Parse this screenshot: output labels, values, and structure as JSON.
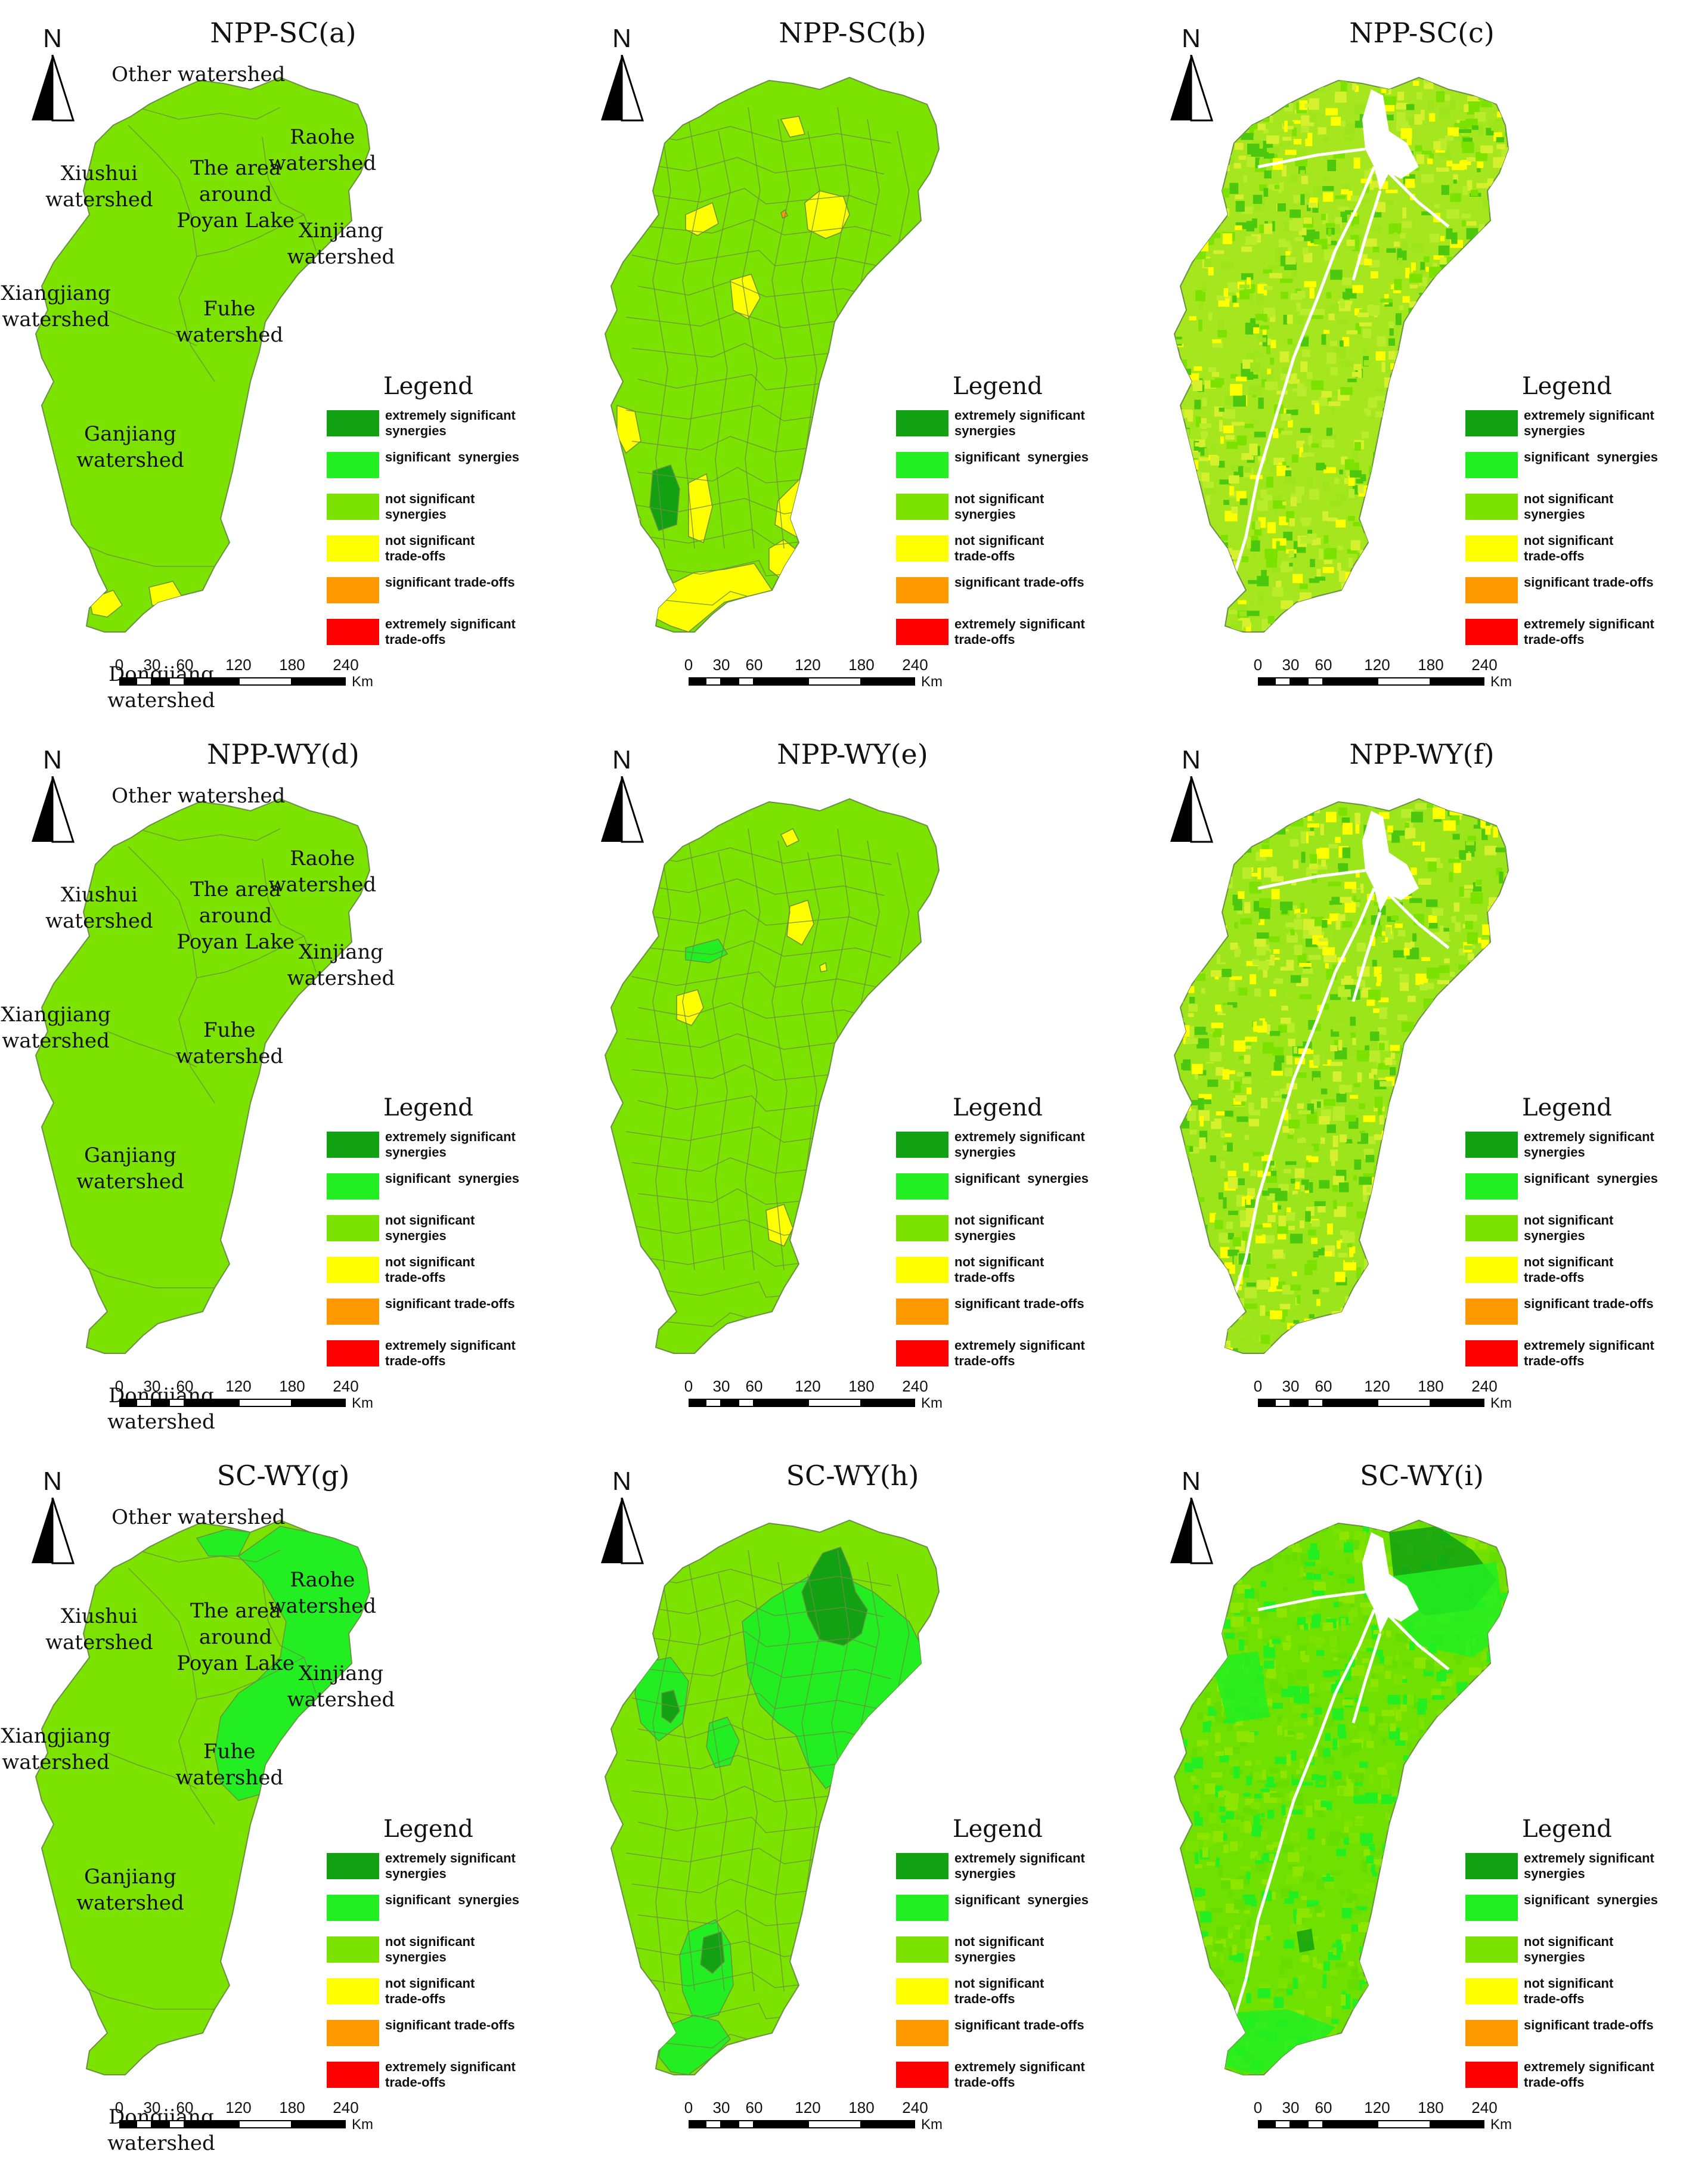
{
  "figure": {
    "panels": [
      {
        "id": "a",
        "title": "NPP-SC(a)",
        "style": "watershed",
        "base": "#7ce300",
        "fine_fill": null,
        "show_labels": true
      },
      {
        "id": "b",
        "title": "NPP-SC(b)",
        "style": "county",
        "base": "#7ce300",
        "fine_fill": null,
        "show_labels": false
      },
      {
        "id": "c",
        "title": "NPP-SC(c)",
        "style": "pixel",
        "base": "#a6e61e",
        "fine_fill": "mixed-yellow-green",
        "show_labels": false
      },
      {
        "id": "d",
        "title": "NPP-WY(d)",
        "style": "watershed",
        "base": "#7ce300",
        "fine_fill": null,
        "show_labels": true
      },
      {
        "id": "e",
        "title": "NPP-WY(e)",
        "style": "county",
        "base": "#7ce300",
        "fine_fill": null,
        "show_labels": false
      },
      {
        "id": "f",
        "title": "NPP-WY(f)",
        "style": "pixel",
        "base": "#9be51a",
        "fine_fill": "mixed-yellow-green",
        "show_labels": false
      },
      {
        "id": "g",
        "title": "SC-WY(g)",
        "style": "watershed",
        "base": "#7ce300",
        "fine_fill": null,
        "show_labels": true
      },
      {
        "id": "h",
        "title": "SC-WY(h)",
        "style": "county",
        "base": "#7ce300",
        "fine_fill": null,
        "show_labels": false
      },
      {
        "id": "i",
        "title": "SC-WY(i)",
        "style": "pixel",
        "base": "#6fe000",
        "fine_fill": "green",
        "show_labels": false
      }
    ],
    "north_letter": "N",
    "north_icon": "north-arrow-icon",
    "watershed_labels": [
      {
        "key": "other",
        "text": "Other watershed"
      },
      {
        "key": "xiushui",
        "text": "Xiushui\nwatershed"
      },
      {
        "key": "poyang",
        "text": "The area\naround\nPoyan Lake"
      },
      {
        "key": "raohe",
        "text": "Raohe\nwatershed"
      },
      {
        "key": "xinjiang",
        "text": "Xinjiang\nwatershed"
      },
      {
        "key": "xiangjiang",
        "text": "Xiangjiang\nwatershed"
      },
      {
        "key": "fuhe",
        "text": "Fuhe\nwatershed"
      },
      {
        "key": "ganjiang",
        "text": "Ganjiang\nwatershed"
      },
      {
        "key": "dongjiang",
        "text": "Dongjiang\nwatershed"
      }
    ],
    "legend": {
      "title": "Legend",
      "items": [
        {
          "label": "extremely significant\nsynergies",
          "color": "#12a112"
        },
        {
          "label": "significant  synergies",
          "color": "#22ee22"
        },
        {
          "label": "not significant\nsynergies",
          "color": "#7ce300"
        },
        {
          "label": "not significant\ntrade-offs",
          "color": "#ffff00"
        },
        {
          "label": "significant trade-offs",
          "color": "#ff9900"
        },
        {
          "label": "extremely significant\ntrade-offs",
          "color": "#ff0000"
        }
      ]
    },
    "scalebar": {
      "ticks": [
        "0",
        "30",
        "60",
        "120",
        "180",
        "240"
      ],
      "unit": "Km"
    },
    "colors": {
      "extreme_synergy": "#12a112",
      "sig_synergy": "#22ee22",
      "ns_synergy": "#7ce300",
      "ns_tradeoff": "#ffff00",
      "sig_tradeoff": "#ff9900",
      "extreme_tradeoff": "#ff0000",
      "boundary": "#6a8f45"
    }
  }
}
